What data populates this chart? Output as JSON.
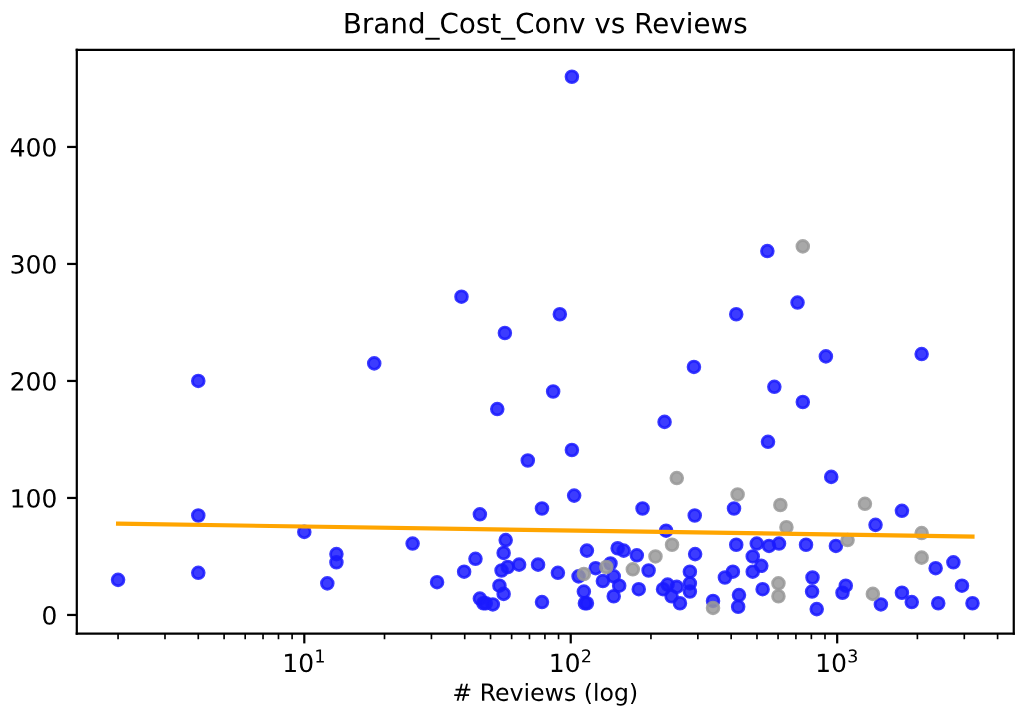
{
  "chart_data": {
    "type": "scatter",
    "title": "Brand_Cost_Conv vs Reviews",
    "xlabel": "# Reviews (log)",
    "log": "x",
    "xlim": [
      1.4,
      4600
    ],
    "ylim": [
      -16,
      483
    ],
    "xticks": [
      {
        "value": 10,
        "label": "10$^{1}$"
      },
      {
        "value": 100,
        "label": "10$^{2}$"
      },
      {
        "value": 1000,
        "label": "10$^{3}$"
      }
    ],
    "yticks": [
      0,
      100,
      200,
      300,
      400
    ],
    "grid": false,
    "legend": false,
    "series": [
      {
        "color": "#1a1aff",
        "marker": "circle",
        "x": [
          2,
          4,
          4,
          4,
          10,
          12.2,
          13.2,
          13.2,
          18.3,
          25.5,
          31.5,
          38.9,
          39.8,
          43.9,
          45.6,
          45.6,
          47,
          48,
          51,
          53,
          54,
          55,
          56,
          56,
          56.6,
          57,
          58,
          64,
          69,
          75.4,
          78,
          78,
          85.9,
          89.5,
          91,
          101,
          101,
          103,
          107,
          112,
          113,
          115,
          115,
          124,
          132,
          141,
          145,
          145,
          150,
          152,
          158,
          177,
          180,
          186,
          196,
          222,
          225,
          228,
          231,
          239,
          250,
          257,
          280,
          280,
          280,
          290,
          292,
          293,
          342,
          379,
          406,
          410,
          418,
          418,
          425,
          428,
          482,
          482,
          499,
          519,
          525,
          547,
          550,
          555,
          581,
          605,
          710,
          743,
          764,
          805,
          808,
          838,
          907,
          950,
          989,
          1047,
          1077,
          1393,
          1459,
          1750,
          1750,
          1905,
          2075,
          2342,
          2395,
          2730,
          2940,
          3220
        ],
        "values": [
          30,
          200,
          85,
          36,
          71,
          27,
          52,
          45,
          215,
          61,
          28,
          272,
          37,
          48,
          86,
          14,
          10,
          10,
          9,
          176,
          25,
          38,
          53,
          18,
          241,
          64,
          41,
          43,
          132,
          43,
          91,
          11,
          191,
          36,
          257,
          460,
          141,
          102,
          33,
          20,
          10,
          10,
          55,
          40,
          29,
          44,
          33,
          16,
          57,
          25,
          55,
          51,
          22,
          91,
          38,
          22,
          165,
          72,
          26,
          16,
          24,
          10,
          37,
          27,
          20,
          212,
          85,
          52,
          12,
          32,
          37,
          91,
          257,
          60,
          7,
          17,
          50,
          37,
          61,
          42,
          22,
          311,
          148,
          59,
          195,
          61,
          267,
          182,
          60,
          20,
          32,
          5,
          221,
          118,
          59,
          19,
          25,
          77,
          9,
          89,
          19,
          11,
          223,
          40,
          10,
          45,
          25,
          10
        ]
      },
      {
        "color": "#999999",
        "marker": "circle",
        "x": [
          112,
          136,
          171,
          208,
          240,
          250,
          342,
          423,
          602,
          602,
          612,
          645,
          743,
          1094,
          1271,
          1361,
          2075,
          2075
        ],
        "values": [
          35,
          41,
          39,
          50,
          60,
          117,
          6,
          103,
          27,
          16,
          94,
          75,
          315,
          64,
          95,
          18,
          70,
          49
        ]
      },
      {
        "type": "line",
        "color": "#ffa500",
        "marker": "none",
        "line_style": "solid",
        "x": [
          2,
          3220
        ],
        "values": [
          78,
          67
        ]
      }
    ]
  }
}
